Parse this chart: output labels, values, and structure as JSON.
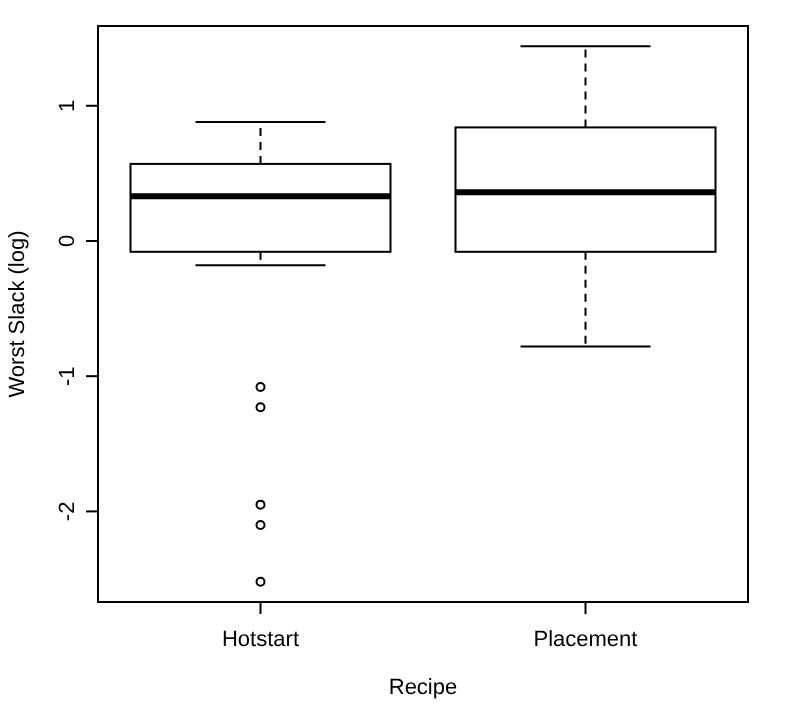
{
  "chart_data": {
    "type": "box",
    "xlabel": "Recipe",
    "ylabel": "Worst Slack (log)",
    "categories": [
      "Hotstart",
      "Placement"
    ],
    "boxes": [
      {
        "low": -0.18,
        "q1": -0.08,
        "median": 0.33,
        "q3": 0.57,
        "high": 0.88,
        "outliers": [
          -1.08,
          -1.23,
          -1.95,
          -2.1,
          -2.52
        ]
      },
      {
        "low": -0.78,
        "q1": -0.08,
        "median": 0.36,
        "q3": 0.84,
        "high": 1.44
      }
    ],
    "color": "#000000",
    "ylim": [
      -2.67,
      1.59
    ],
    "yticks": [
      -2,
      -1,
      0,
      1
    ],
    "grid": false
  }
}
